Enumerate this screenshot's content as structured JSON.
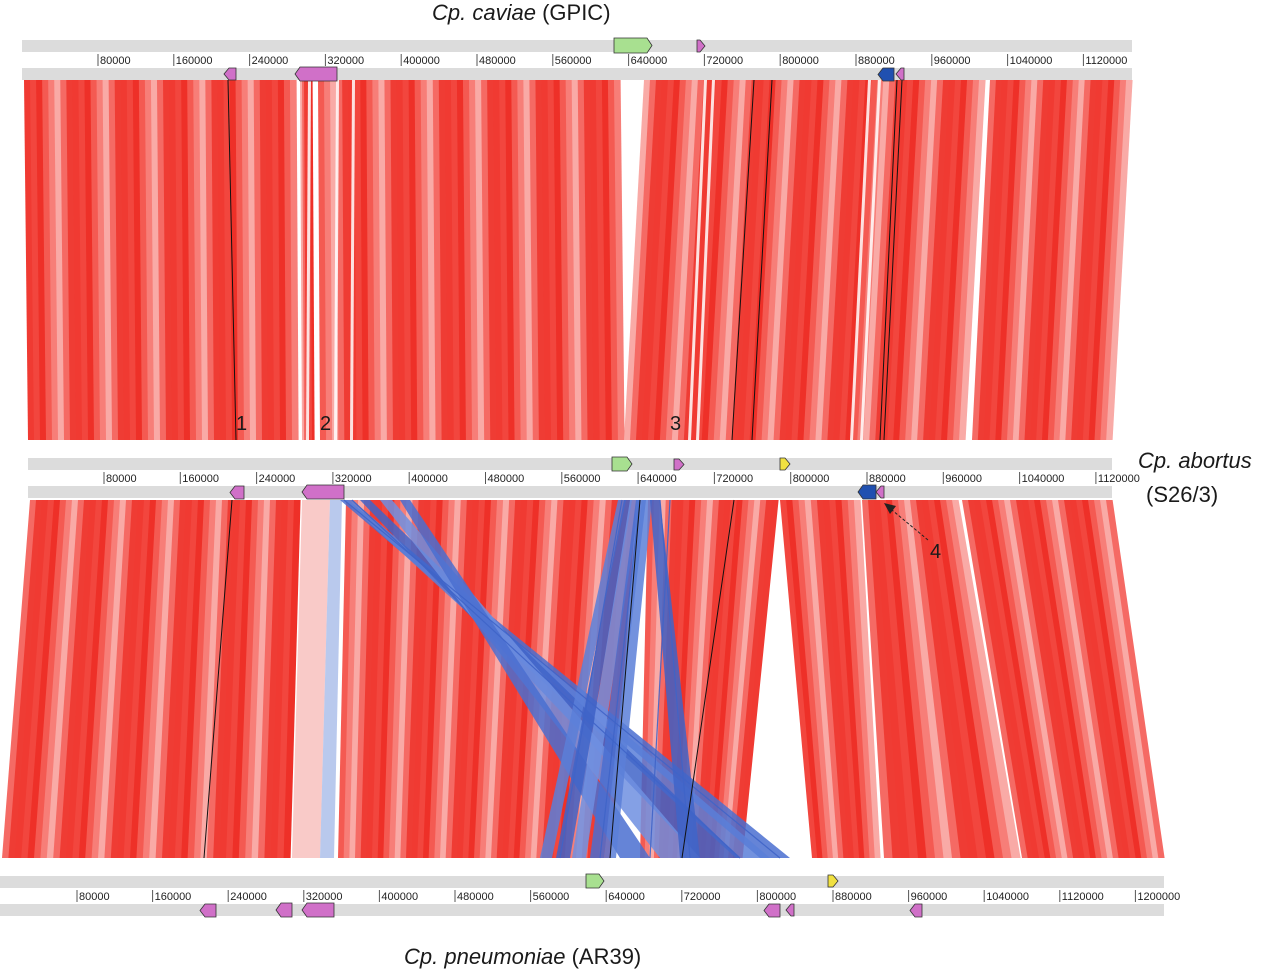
{
  "genomes": [
    {
      "key": "caviae",
      "species": "Cp. caviae",
      "strain": "(GPIC)",
      "length": 1173390,
      "ticks": [
        "80000",
        "160000",
        "240000",
        "320000",
        "400000",
        "480000",
        "560000",
        "640000",
        "720000",
        "800000",
        "880000",
        "960000",
        "1040000",
        "1120000"
      ]
    },
    {
      "key": "abortus",
      "species": "Cp. abortus",
      "strain": "(S26/3)",
      "length": 1144377,
      "ticks": [
        "80000",
        "160000",
        "240000",
        "320000",
        "400000",
        "480000",
        "560000",
        "640000",
        "720000",
        "800000",
        "880000",
        "960000",
        "1040000",
        "1120000"
      ]
    },
    {
      "key": "pneumoniae",
      "species": "Cp. pneumoniae",
      "strain": "(AR39)",
      "length": 1229853,
      "ticks": [
        "80000",
        "160000",
        "240000",
        "320000",
        "400000",
        "480000",
        "560000",
        "640000",
        "720000",
        "800000",
        "880000",
        "960000",
        "1040000",
        "1120000",
        "1200000"
      ]
    }
  ],
  "annotations": [
    {
      "label": "1"
    },
    {
      "label": "2"
    },
    {
      "label": "3"
    },
    {
      "label": "4"
    }
  ],
  "legend_colors": {
    "direct_match": "#f03a32",
    "inverted_match": "#4a6fd0",
    "feature_pink": "#d070c8",
    "feature_green": "#a8e090",
    "feature_blue": "#2050b0",
    "feature_yellow": "#f0e040",
    "track": "#dcdcdc"
  }
}
